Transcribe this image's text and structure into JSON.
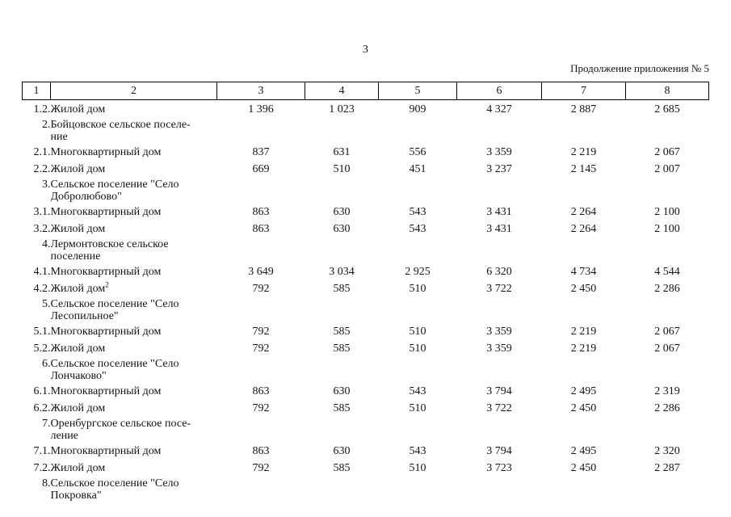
{
  "page": {
    "number": "3",
    "continuation": "Продолжение приложения № 5"
  },
  "table": {
    "header": [
      "1",
      "2",
      "3",
      "4",
      "5",
      "6",
      "7",
      "8"
    ],
    "rows": [
      {
        "type": "item",
        "num": "1.2.",
        "label": "Жилой дом",
        "values": [
          "1 396",
          "1 023",
          "909",
          "4 327",
          "2 887",
          "2 685"
        ]
      },
      {
        "type": "group",
        "num": "2.",
        "label": "Бойцовское сельское поселе-\nние"
      },
      {
        "type": "item",
        "num": "2.1.",
        "label": "Многоквартирный дом",
        "values": [
          "837",
          "631",
          "556",
          "3 359",
          "2 219",
          "2 067"
        ]
      },
      {
        "type": "item",
        "num": "2.2.",
        "label": "Жилой дом",
        "values": [
          "669",
          "510",
          "451",
          "3 237",
          "2 145",
          "2 007"
        ]
      },
      {
        "type": "group",
        "num": "3.",
        "label": "Сельское поселение \"Село\nДобролюбово\""
      },
      {
        "type": "item",
        "num": "3.1.",
        "label": "Многоквартирный дом",
        "values": [
          "863",
          "630",
          "543",
          "3 431",
          "2 264",
          "2 100"
        ]
      },
      {
        "type": "item",
        "num": "3.2.",
        "label": "Жилой дом",
        "values": [
          "863",
          "630",
          "543",
          "3 431",
          "2 264",
          "2 100"
        ]
      },
      {
        "type": "group",
        "num": "4.",
        "label": "Лермонтовское сельское\nпоселение"
      },
      {
        "type": "item",
        "num": "4.1.",
        "label": "Многоквартирный дом",
        "values": [
          "3 649",
          "3 034",
          "2 925",
          "6 320",
          "4 734",
          "4 544"
        ]
      },
      {
        "type": "item",
        "num": "4.2.",
        "label": "Жилой дом",
        "sup": "2",
        "values": [
          "792",
          "585",
          "510",
          "3 722",
          "2 450",
          "2 286"
        ]
      },
      {
        "type": "group",
        "num": "5.",
        "label": "Сельское поселение \"Село\nЛесопильное\""
      },
      {
        "type": "item",
        "num": "5.1.",
        "label": "Многоквартирный дом",
        "values": [
          "792",
          "585",
          "510",
          "3 359",
          "2 219",
          "2 067"
        ]
      },
      {
        "type": "item",
        "num": "5.2.",
        "label": "Жилой дом",
        "values": [
          "792",
          "585",
          "510",
          "3 359",
          "2 219",
          "2 067"
        ]
      },
      {
        "type": "group",
        "num": "6.",
        "label": "Сельское поселение \"Село\nЛончаково\""
      },
      {
        "type": "item",
        "num": "6.1.",
        "label": "Многоквартирный дом",
        "values": [
          "863",
          "630",
          "543",
          "3 794",
          "2 495",
          "2 319"
        ]
      },
      {
        "type": "item",
        "num": "6.2.",
        "label": "Жилой дом",
        "values": [
          "792",
          "585",
          "510",
          "3 722",
          "2 450",
          "2 286"
        ]
      },
      {
        "type": "group",
        "num": "7.",
        "label": "Оренбургское сельское посе-\nление"
      },
      {
        "type": "item",
        "num": "7.1.",
        "label": "Многоквартирный дом",
        "values": [
          "863",
          "630",
          "543",
          "3 794",
          "2 495",
          "2 320"
        ]
      },
      {
        "type": "item",
        "num": "7.2.",
        "label": "Жилой дом",
        "values": [
          "792",
          "585",
          "510",
          "3 723",
          "2 450",
          "2 287"
        ]
      },
      {
        "type": "group",
        "num": "8.",
        "label": "Сельское поселение \"Село\nПокровка\""
      }
    ]
  }
}
